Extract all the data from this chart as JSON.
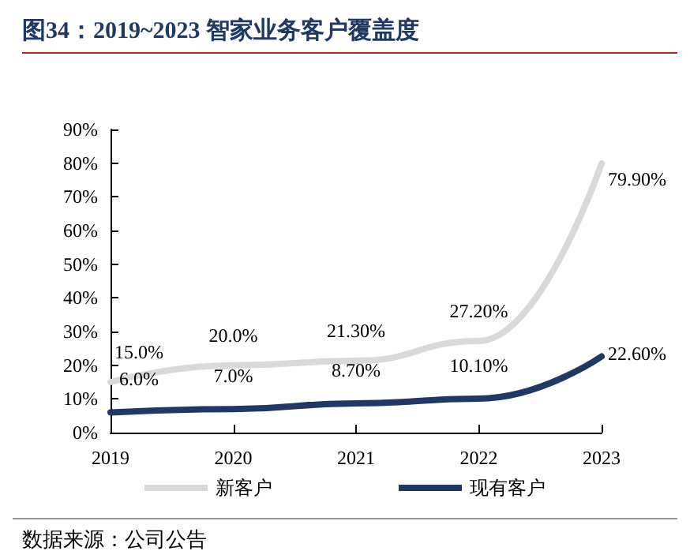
{
  "chart_data": {
    "type": "line",
    "title": "图34：2019~2023 智家业务客户覆盖度",
    "annotations": [
      "数据来源：公司公告"
    ],
    "categories": [
      "2019",
      "2020",
      "2021",
      "2022",
      "2023"
    ],
    "series": [
      {
        "name": "新客户",
        "color": "#d9d9d9",
        "values": [
          15.0,
          20.0,
          21.3,
          27.2,
          79.9
        ],
        "value_labels": [
          "15.0%",
          "20.0%",
          "21.30%",
          "27.20%",
          "79.90%"
        ]
      },
      {
        "name": "现有客户",
        "color": "#1f3864",
        "values": [
          6.0,
          7.0,
          8.7,
          10.1,
          22.6
        ],
        "value_labels": [
          "6.0%",
          "7.0%",
          "8.70%",
          "10.10%",
          "22.60%"
        ]
      }
    ],
    "ylim": [
      0,
      90
    ],
    "yticks": [
      {
        "value": 0,
        "label": "0%"
      },
      {
        "value": 10,
        "label": "10%"
      },
      {
        "value": 20,
        "label": "20%"
      },
      {
        "value": 30,
        "label": "30%"
      },
      {
        "value": 40,
        "label": "40%"
      },
      {
        "value": 50,
        "label": "50%"
      },
      {
        "value": 60,
        "label": "60%"
      },
      {
        "value": 70,
        "label": "70%"
      },
      {
        "value": 80,
        "label": "80%"
      },
      {
        "value": 90,
        "label": "90%"
      }
    ],
    "grid": false,
    "legend": "bottom",
    "marker": "none",
    "line_style": "solid"
  }
}
